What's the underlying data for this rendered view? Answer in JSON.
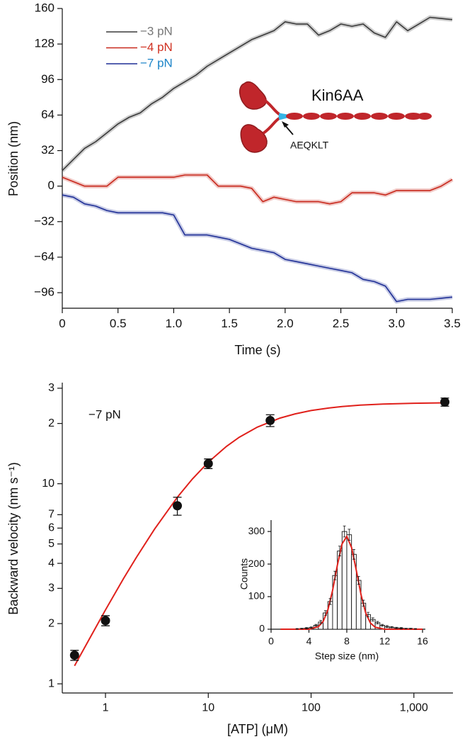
{
  "chart_data": [
    {
      "type": "line",
      "xlabel": "Time (s)",
      "ylabel": "Position (nm)",
      "annotations": [
        "Kin6AA",
        "AEQKLT"
      ],
      "x": [
        0,
        0.1,
        0.2,
        0.3,
        0.4,
        0.5,
        0.6,
        0.7,
        0.8,
        0.9,
        1.0,
        1.1,
        1.2,
        1.3,
        1.4,
        1.5,
        1.6,
        1.7,
        1.8,
        1.9,
        2.0,
        2.1,
        2.2,
        2.3,
        2.4,
        2.5,
        2.6,
        2.7,
        2.8,
        2.9,
        3.0,
        3.1,
        3.2,
        3.3,
        3.4,
        3.5
      ],
      "series": [
        {
          "name": "−3 pN",
          "color": "#3a3a3a",
          "label_color": "#777777",
          "values": [
            14,
            24,
            34,
            40,
            48,
            56,
            62,
            66,
            74,
            80,
            88,
            94,
            100,
            108,
            114,
            120,
            126,
            132,
            136,
            140,
            148,
            146,
            146,
            136,
            140,
            146,
            144,
            146,
            138,
            134,
            148,
            140,
            146,
            152,
            151,
            150
          ]
        },
        {
          "name": "−4 pN",
          "color": "#c8281c",
          "label_color": "#d03020",
          "values": [
            8,
            4,
            0,
            0,
            0,
            8,
            8,
            8,
            8,
            8,
            8,
            10,
            10,
            10,
            0,
            0,
            0,
            -2,
            -14,
            -10,
            -12,
            -14,
            -14,
            -14,
            -16,
            -14,
            -6,
            -6,
            -6,
            -8,
            -4,
            -4,
            -4,
            -4,
            0,
            6
          ]
        },
        {
          "name": "−7 pN",
          "color": "#1f2f96",
          "label_color": "#1c84c8",
          "values": [
            -8,
            -10,
            -16,
            -18,
            -22,
            -24,
            -24,
            -24,
            -24,
            -24,
            -26,
            -44,
            -44,
            -44,
            -46,
            -48,
            -52,
            -56,
            -58,
            -60,
            -66,
            -68,
            -70,
            -72,
            -74,
            -76,
            -78,
            -84,
            -86,
            -90,
            -104,
            -102,
            -102,
            -102,
            -101,
            -100
          ]
        }
      ],
      "xlim": [
        0,
        3.5
      ],
      "ylim": [
        -110,
        160
      ],
      "xticks": [
        0,
        0.5,
        {
          "value": 1,
          "label": "1.0"
        },
        1.5,
        {
          "value": 2,
          "label": "2.0"
        },
        2.5,
        {
          "value": 3,
          "label": "3.0"
        },
        3.5
      ],
      "yticks": [
        {
          "value": -96,
          "label": "−96"
        },
        {
          "value": -64,
          "label": "−64"
        },
        {
          "value": -32,
          "label": "−32"
        },
        0,
        32,
        64,
        96,
        128,
        160
      ]
    },
    {
      "type": "scatter",
      "xlabel": "[ATP] (μM)",
      "ylabel": "Backward velocity (nm s⁻¹)",
      "annotation": "−7 pN",
      "x": [
        0.5,
        1,
        5,
        10,
        40,
        2000
      ],
      "values": [
        1.39,
        2.07,
        7.76,
        12.6,
        20.7,
        25.6
      ],
      "errors": [
        0.08,
        0.12,
        0.8,
        0.7,
        1.4,
        1.2
      ],
      "color": "#111111",
      "fit": {
        "color": "#e0201b",
        "x": [
          0.5,
          0.7,
          1,
          1.5,
          2,
          3,
          5,
          7,
          10,
          15,
          20,
          30,
          50,
          70,
          100,
          150,
          200,
          300,
          500,
          1000,
          2000
        ],
        "values": [
          1.23,
          1.68,
          2.34,
          3.36,
          4.29,
          5.93,
          8.56,
          10.56,
          12.81,
          15.36,
          17.06,
          19.17,
          21.29,
          22.34,
          23.2,
          23.92,
          24.3,
          24.69,
          25.0,
          25.25,
          25.37
        ]
      },
      "xlog": true,
      "ylog": true,
      "xlim": [
        0.38,
        2400
      ],
      "ylim": [
        0.9,
        32
      ],
      "xticks": [
        1,
        10,
        100,
        {
          "value": 1000,
          "label": "1,000"
        }
      ],
      "yticks": [
        1,
        2,
        3,
        4,
        5,
        6,
        7,
        10,
        {
          "value": 20,
          "label": "2"
        },
        {
          "value": 30,
          "label": "3"
        }
      ]
    },
    {
      "type": "histogram",
      "xlabel": "Step size (nm)",
      "ylabel": "Counts",
      "bins": [
        2.5,
        3,
        3.5,
        4,
        4.5,
        5,
        5.5,
        6,
        6.5,
        7,
        7.5,
        8,
        8.5,
        9,
        9.5,
        10,
        10.5,
        11,
        11.5,
        12,
        12.5,
        13,
        13.5,
        14,
        14.5,
        15,
        15.5
      ],
      "values": [
        1,
        2,
        3,
        5,
        12,
        22,
        50,
        85,
        165,
        240,
        300,
        290,
        230,
        150,
        80,
        45,
        30,
        20,
        12,
        8,
        6,
        4,
        3,
        2,
        2,
        1
      ],
      "errors": [
        1,
        1,
        2,
        2,
        3,
        5,
        7,
        9,
        13,
        15,
        17,
        17,
        15,
        12,
        9,
        7,
        5,
        4,
        3,
        3,
        2,
        2,
        2,
        1,
        1,
        1
      ],
      "color": "#ffffff",
      "fit": {
        "color": "#e0201b",
        "x": [
          1,
          2,
          3,
          4,
          5,
          5.5,
          6,
          6.5,
          7,
          7.5,
          8,
          8.5,
          9,
          9.5,
          10,
          10.5,
          11,
          12,
          13,
          14,
          15,
          16
        ],
        "values": [
          0,
          0,
          0,
          0,
          8,
          24,
          59,
          119,
          196,
          262,
          285,
          251,
          181,
          106,
          50,
          19,
          6,
          0,
          0,
          0,
          0,
          0
        ]
      },
      "xlim": [
        0,
        16.3
      ],
      "ylim": [
        0,
        335
      ],
      "xticks": [
        0,
        4,
        8,
        12,
        16
      ],
      "yticks": [
        0,
        100,
        200,
        300
      ]
    }
  ]
}
